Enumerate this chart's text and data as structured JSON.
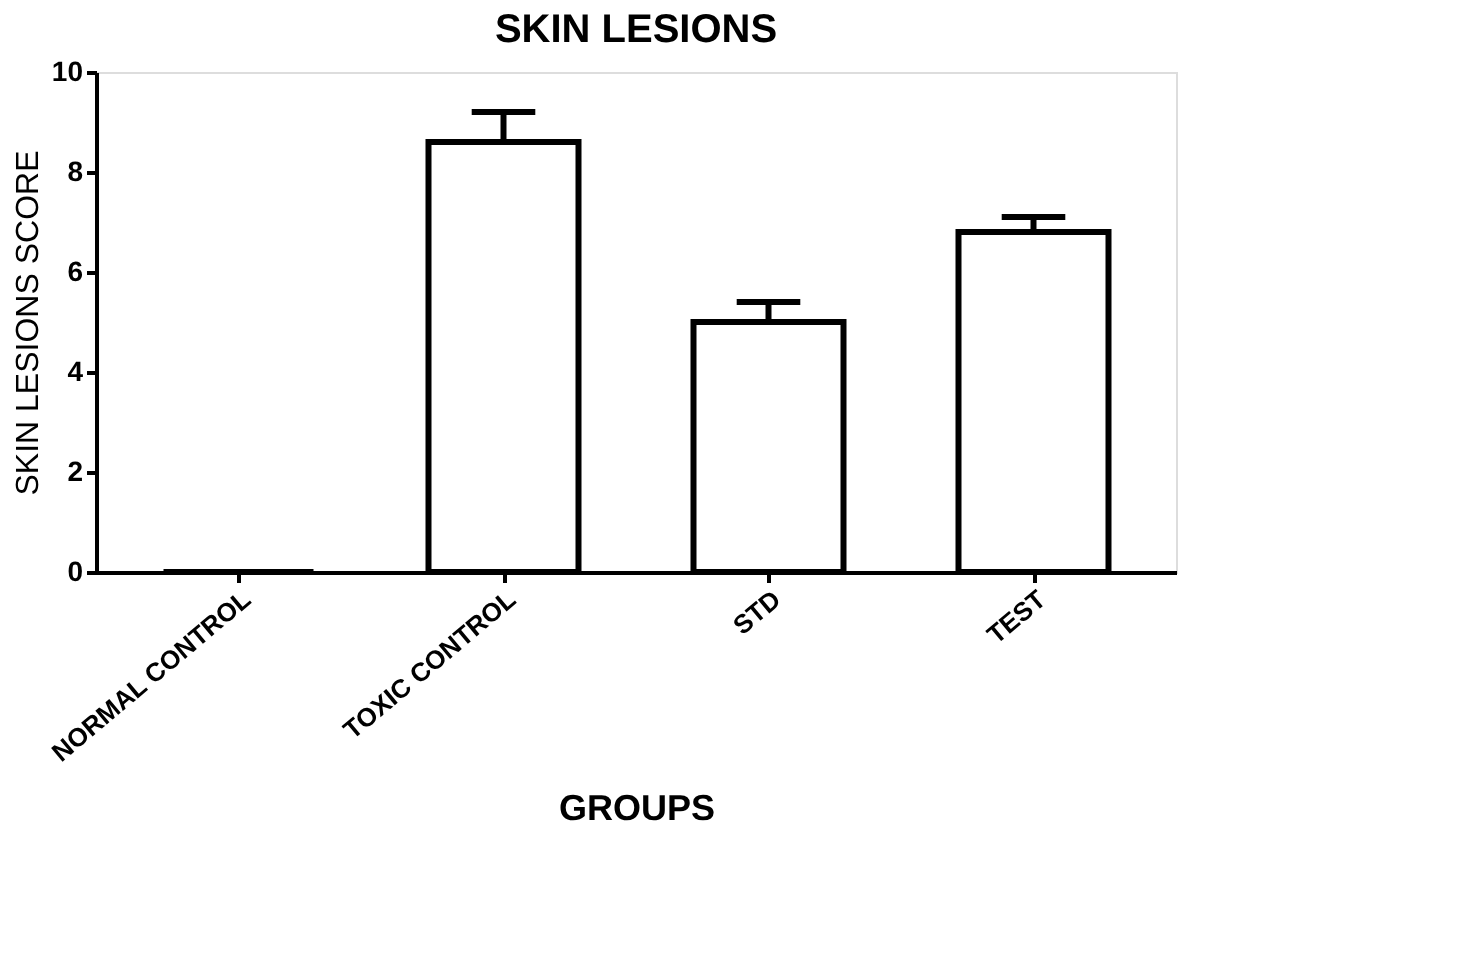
{
  "chart_data": {
    "type": "bar",
    "title": "SKIN LESIONS",
    "xlabel": "GROUPS",
    "ylabel": "SKIN LESIONS SCORE",
    "categories": [
      "NORMAL CONTROL",
      "TOXIC CONTROL",
      "STD",
      "TEST"
    ],
    "values": [
      0,
      8.6,
      5.0,
      6.8
    ],
    "errors": [
      null,
      0.6,
      0.4,
      0.3
    ],
    "color": "#000000",
    "ylim": [
      0,
      10
    ],
    "yticks": [
      0,
      2,
      4,
      6,
      8,
      10
    ],
    "grid": false
  }
}
